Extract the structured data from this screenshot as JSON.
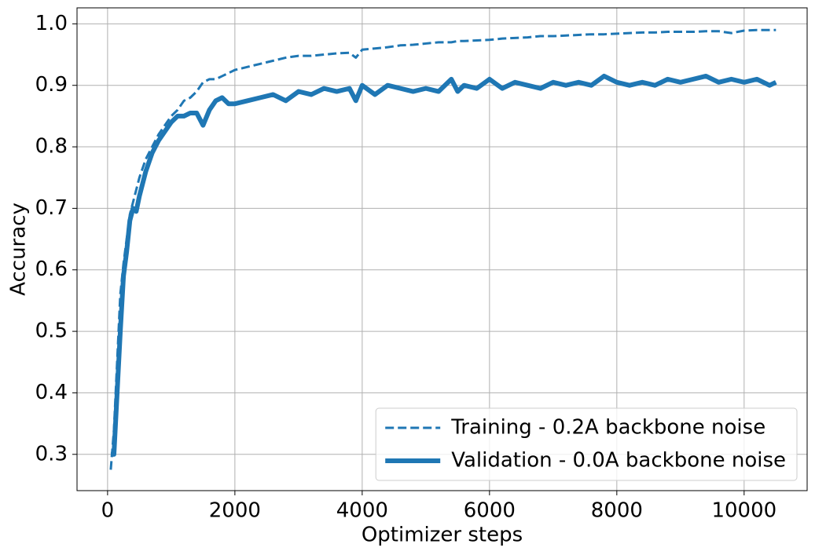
{
  "chart_data": {
    "type": "line",
    "xlabel": "Optimizer steps",
    "ylabel": "Accuracy",
    "x": [
      50,
      100,
      150,
      200,
      250,
      300,
      350,
      400,
      450,
      500,
      600,
      700,
      800,
      900,
      1000,
      1100,
      1200,
      1300,
      1400,
      1500,
      1600,
      1700,
      1800,
      1900,
      2000,
      2200,
      2400,
      2600,
      2800,
      3000,
      3200,
      3400,
      3600,
      3800,
      3900,
      4000,
      4200,
      4400,
      4600,
      4800,
      5000,
      5200,
      5400,
      5500,
      5600,
      5800,
      6000,
      6200,
      6400,
      6600,
      6800,
      7000,
      7200,
      7400,
      7600,
      7800,
      8000,
      8200,
      8400,
      8600,
      8800,
      9000,
      9200,
      9400,
      9600,
      9800,
      10000,
      10200,
      10400,
      10500
    ],
    "series": [
      {
        "name": "Training - 0.2A backbone noise",
        "color": "#1f77b4",
        "dashed": true,
        "width": 3,
        "values": [
          0.275,
          0.34,
          0.45,
          0.56,
          0.61,
          0.65,
          0.69,
          0.71,
          0.73,
          0.75,
          0.78,
          0.8,
          0.82,
          0.835,
          0.85,
          0.86,
          0.875,
          0.88,
          0.89,
          0.905,
          0.91,
          0.91,
          0.915,
          0.92,
          0.925,
          0.93,
          0.935,
          0.94,
          0.945,
          0.948,
          0.948,
          0.95,
          0.952,
          0.953,
          0.945,
          0.958,
          0.96,
          0.962,
          0.965,
          0.966,
          0.968,
          0.97,
          0.97,
          0.972,
          0.972,
          0.973,
          0.974,
          0.976,
          0.977,
          0.978,
          0.98,
          0.98,
          0.981,
          0.982,
          0.983,
          0.983,
          0.984,
          0.985,
          0.986,
          0.986,
          0.987,
          0.987,
          0.987,
          0.988,
          0.988,
          0.985,
          0.989,
          0.99,
          0.99,
          0.99
        ]
      },
      {
        "name": "Validation - 0.0A backbone noise",
        "color": "#1f77b4",
        "dashed": false,
        "width": 6,
        "values": [
          0.3,
          0.3,
          0.4,
          0.5,
          0.59,
          0.63,
          0.68,
          0.7,
          0.695,
          0.72,
          0.76,
          0.79,
          0.81,
          0.825,
          0.84,
          0.85,
          0.85,
          0.855,
          0.855,
          0.835,
          0.86,
          0.875,
          0.88,
          0.87,
          0.87,
          0.875,
          0.88,
          0.885,
          0.875,
          0.89,
          0.885,
          0.895,
          0.89,
          0.895,
          0.875,
          0.9,
          0.885,
          0.9,
          0.895,
          0.89,
          0.895,
          0.89,
          0.91,
          0.89,
          0.9,
          0.895,
          0.91,
          0.895,
          0.905,
          0.9,
          0.895,
          0.905,
          0.9,
          0.905,
          0.9,
          0.915,
          0.905,
          0.9,
          0.905,
          0.9,
          0.91,
          0.905,
          0.91,
          0.915,
          0.905,
          0.91,
          0.905,
          0.91,
          0.9,
          0.905
        ]
      }
    ],
    "xlim": [
      -480,
      10990
    ],
    "ylim": [
      0.241,
      1.026
    ],
    "xticks": [
      0,
      2000,
      4000,
      6000,
      8000,
      10000
    ],
    "yticks": [
      0.3,
      0.4,
      0.5,
      0.6,
      0.7,
      0.8,
      0.9,
      {
        "value": 1,
        "label": "1.0"
      }
    ],
    "grid": true,
    "legend": "lower right"
  }
}
